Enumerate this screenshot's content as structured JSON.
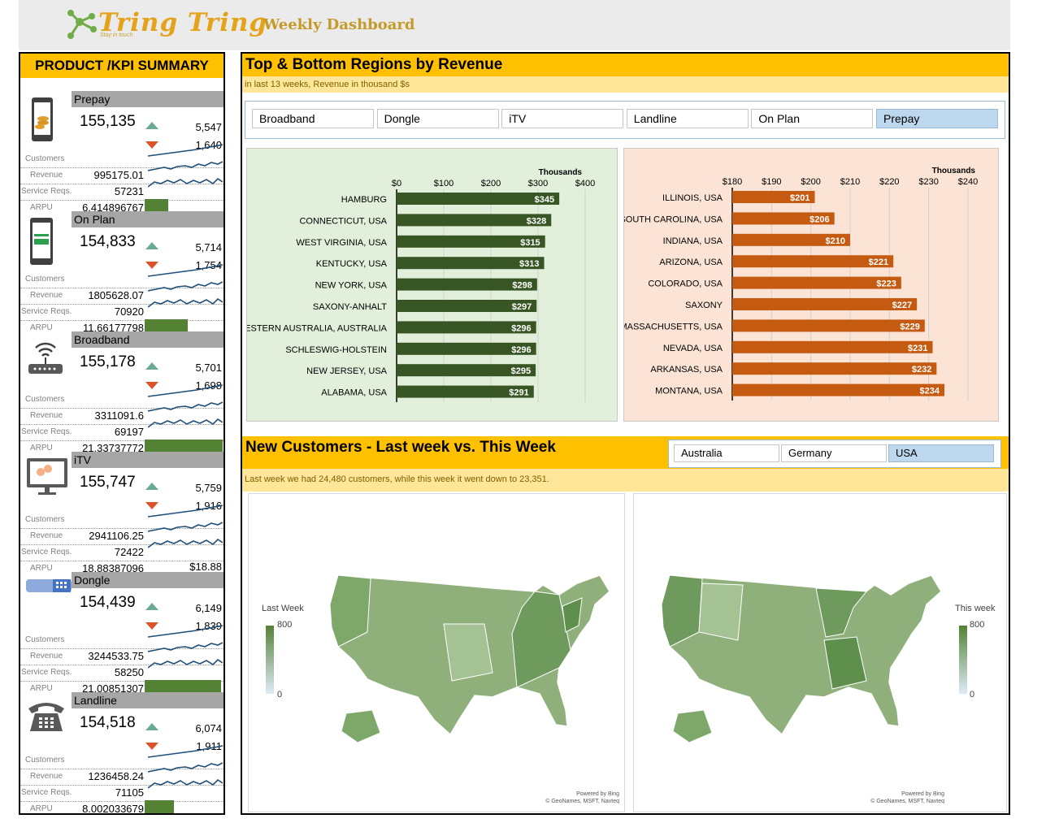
{
  "header": {
    "brand": "Tring Tring",
    "tagline": "Stay in touch",
    "title": "Weekly Dashboard"
  },
  "summary": {
    "title": "PRODUCT /KPI SUMMARY",
    "labels": {
      "customers": "Customers",
      "revenue": "Revenue",
      "service": "Service Reqs.",
      "arpu": "ARPU"
    },
    "products": [
      {
        "name": "Prepay",
        "icon": "phone-coins-icon",
        "customers": "155,135",
        "up": "5,547",
        "down": "1,640",
        "revenue": "995175.01",
        "service": "57231",
        "arpu": "6.414896767",
        "arpu_fill": 0.3
      },
      {
        "name": "On Plan",
        "icon": "phone-card-icon",
        "customers": "154,833",
        "up": "5,714",
        "down": "1,754",
        "revenue": "1805628.07",
        "service": "70920",
        "arpu": "11.66177798",
        "arpu_fill": 0.55
      },
      {
        "name": "Broadband",
        "icon": "router-icon",
        "customers": "155,178",
        "up": "5,701",
        "down": "1,698",
        "revenue": "3311091.6",
        "service": "69197",
        "arpu": "21.33737772",
        "arpu_fill": 1.0
      },
      {
        "name": "iTV",
        "icon": "tv-icon",
        "customers": "155,747",
        "up": "5,759",
        "down": "1,916",
        "revenue": "2941106.25",
        "service": "72422",
        "arpu": "18.88387096",
        "arpu_fill": 0,
        "arpu_label": "$18.88"
      },
      {
        "name": "Dongle",
        "icon": "dongle-icon",
        "customers": "154,439",
        "up": "6,149",
        "down": "1,839",
        "revenue": "3244533.75",
        "service": "58250",
        "arpu": "21.00851307",
        "arpu_fill": 0.98
      },
      {
        "name": "Landline",
        "icon": "telephone-icon",
        "customers": "154,518",
        "up": "6,074",
        "down": "1,911",
        "revenue": "1236458.24",
        "service": "71105",
        "arpu": "8.002033679",
        "arpu_fill": 0.37
      }
    ]
  },
  "regions": {
    "title": "Top & Bottom Regions by Revenue",
    "subtitle": "in last 13 weeks, Revenue in thousand $s",
    "tabs": [
      "Broadband",
      "Dongle",
      "iTV",
      "Landline",
      "On Plan",
      "Prepay"
    ],
    "selected": "Prepay"
  },
  "chart_data": [
    {
      "type": "bar",
      "orientation": "horizontal",
      "axis_unit": "Thousands",
      "xlim": [
        0,
        400
      ],
      "ticks": [
        "$0",
        "$100",
        "$200",
        "$300",
        "$400"
      ],
      "tick_values": [
        0,
        100,
        200,
        300,
        400
      ],
      "categories": [
        "HAMBURG",
        "CONNECTICUT, USA",
        "WEST VIRGINIA, USA",
        "KENTUCKY, USA",
        "NEW YORK, USA",
        "SAXONY-ANHALT",
        "WESTERN AUSTRALIA, AUSTRALIA",
        "SCHLESWIG-HOLSTEIN",
        "NEW JERSEY, USA",
        "ALABAMA, USA"
      ],
      "values": [
        345,
        328,
        315,
        313,
        298,
        297,
        296,
        296,
        295,
        291
      ],
      "labels": [
        "$345",
        "$328",
        "$315",
        "$313",
        "$298",
        "$297",
        "$296",
        "$296",
        "$295",
        "$291"
      ],
      "color": "#375623",
      "background": "#e2efda"
    },
    {
      "type": "bar",
      "orientation": "horizontal",
      "axis_unit": "Thousands",
      "xlim": [
        180,
        240
      ],
      "ticks": [
        "$180",
        "$190",
        "$200",
        "$210",
        "$220",
        "$230",
        "$240"
      ],
      "tick_values": [
        180,
        190,
        200,
        210,
        220,
        230,
        240
      ],
      "categories": [
        "ILLINOIS, USA",
        "SOUTH CAROLINA, USA",
        "INDIANA, USA",
        "ARIZONA, USA",
        "COLORADO, USA",
        "SAXONY",
        "MASSACHUSETTS, USA",
        "NEVADA, USA",
        "ARKANSAS, USA",
        "MONTANA, USA"
      ],
      "values": [
        201,
        206,
        210,
        221,
        223,
        227,
        229,
        231,
        232,
        234
      ],
      "labels": [
        "$201",
        "$206",
        "$210",
        "$221",
        "$223",
        "$227",
        "$229",
        "$231",
        "$232",
        "$234"
      ],
      "color": "#c55a11",
      "background": "#fbe4d5"
    }
  ],
  "customers": {
    "title": "New Customers - Last week vs. This Week",
    "tabs": [
      "Australia",
      "Germany",
      "USA"
    ],
    "selected": "USA",
    "subtitle": "Last week we had 24,480 customers, while this week it went down to 23,351.",
    "last_week": "Last Week",
    "this_week": "This week",
    "max": "800",
    "min": "0",
    "powered": "Powered by Bing",
    "credits": "© GeoNames, MSFT, Navteq"
  }
}
